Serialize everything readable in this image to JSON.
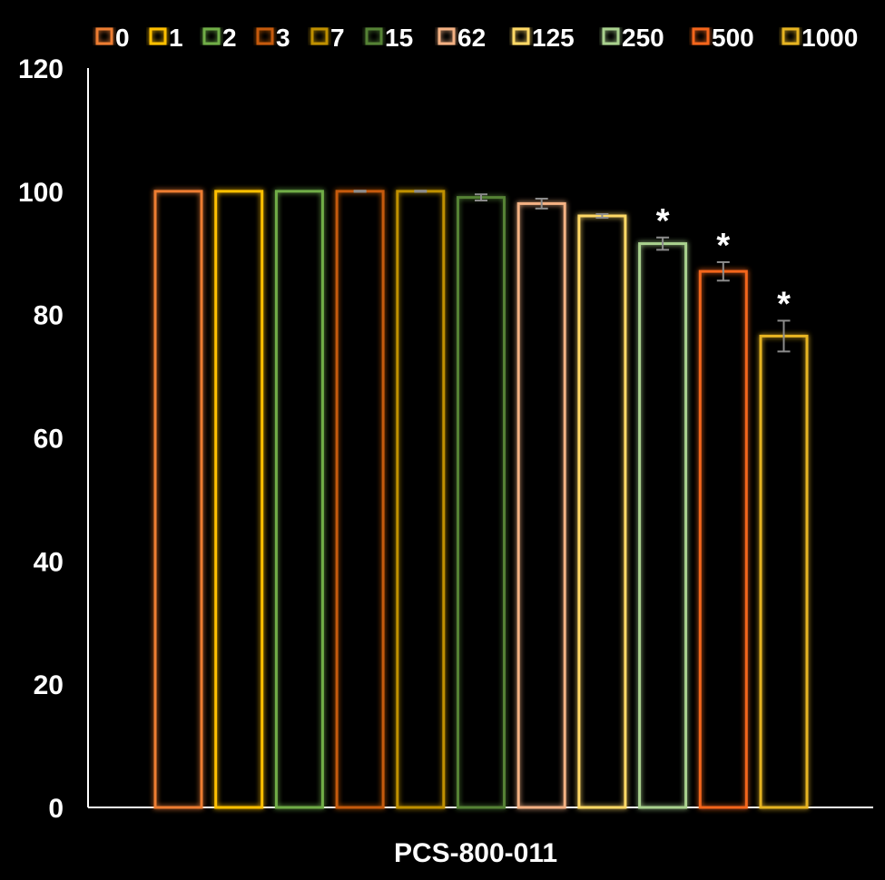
{
  "chart_data": {
    "type": "bar",
    "categories": [
      "PCS-800-011"
    ],
    "series": [
      {
        "name": "0",
        "value": 100.0,
        "error": 0.0,
        "color": "#ED7D31",
        "significant": false
      },
      {
        "name": "1",
        "value": 100.0,
        "error": 0.0,
        "color": "#FFC000",
        "significant": false
      },
      {
        "name": "2",
        "value": 100.0,
        "error": 0.0,
        "color": "#70AD47",
        "significant": false
      },
      {
        "name": "3",
        "value": 100.0,
        "error": 0.1,
        "color": "#C55A11",
        "significant": false
      },
      {
        "name": "7",
        "value": 100.0,
        "error": 0.1,
        "color": "#BF9000",
        "significant": false
      },
      {
        "name": "15",
        "value": 99.0,
        "error": 0.5,
        "color": "#548235",
        "significant": false
      },
      {
        "name": "62",
        "value": 98.0,
        "error": 0.8,
        "color": "#F4B183",
        "significant": false
      },
      {
        "name": "125",
        "value": 96.0,
        "error": 0.3,
        "color": "#FFD966",
        "significant": false
      },
      {
        "name": "250",
        "value": 91.5,
        "error": 1.0,
        "color": "#A9D18E",
        "significant": true
      },
      {
        "name": "500",
        "value": 87.0,
        "error": 1.5,
        "color": "#F4661B",
        "significant": true
      },
      {
        "name": "1000",
        "value": 76.5,
        "error": 2.5,
        "color": "#E6B422",
        "significant": true
      }
    ],
    "significance_marker": "*",
    "y_ticks": [
      "0",
      "20",
      "40",
      "60",
      "80",
      "100",
      "120"
    ],
    "ylim": [
      0,
      120
    ],
    "grid": false,
    "legend_position": "top"
  }
}
